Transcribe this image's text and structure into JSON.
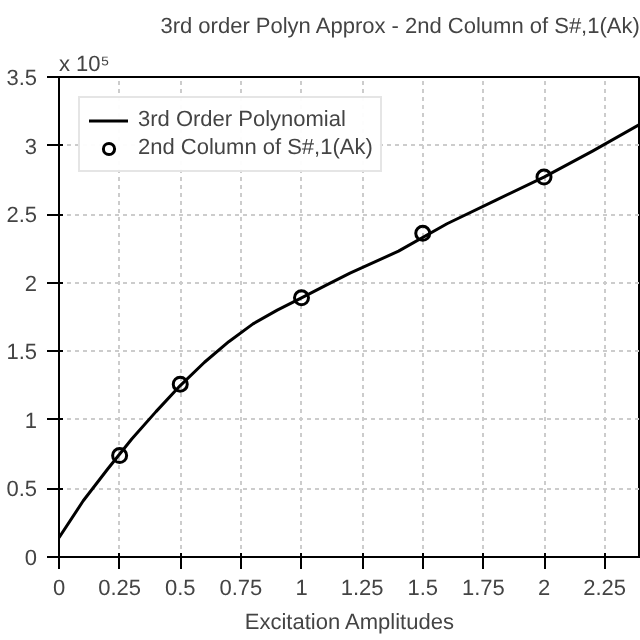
{
  "chart_data": {
    "type": "line",
    "title": "3rd order Polyn Approx - 2nd Column of S#,1(Ak)",
    "xlabel": "Excitation Amplitudes",
    "annotations": [
      "x 10⁵"
    ],
    "series": [
      {
        "name": "3rd Order Polynomial",
        "color": "#000000",
        "marker": "none",
        "x": [
          0,
          0.1,
          0.2,
          0.3,
          0.4,
          0.5,
          0.6,
          0.7,
          0.8,
          0.9,
          1.0,
          1.1,
          1.2,
          1.4,
          1.6,
          1.8,
          2.0,
          2.2,
          2.4
        ],
        "values": [
          0.14,
          0.41,
          0.64,
          0.86,
          1.06,
          1.25,
          1.42,
          1.57,
          1.7,
          1.8,
          1.89,
          1.98,
          2.07,
          2.23,
          2.43,
          2.6,
          2.77,
          2.96,
          3.16
        ]
      },
      {
        "name": "2nd Column of S#,1(Ak)",
        "color": "#000000",
        "type": "scatter",
        "marker": "circle",
        "x": [
          0.25,
          0.5,
          1,
          1.5,
          2
        ],
        "values": [
          0.74,
          1.26,
          1.89,
          2.36,
          2.77
        ]
      }
    ],
    "xlim": [
      0,
      2.4
    ],
    "ylim": [
      0,
      3.5
    ],
    "xticks": [
      0,
      0.25,
      0.5,
      0.75,
      1,
      1.25,
      1.5,
      1.75,
      2,
      2.25
    ],
    "yticks": [
      0,
      0.5,
      1,
      1.5,
      2,
      2.5,
      3,
      3.5
    ],
    "grid": true,
    "legend": "top left"
  }
}
